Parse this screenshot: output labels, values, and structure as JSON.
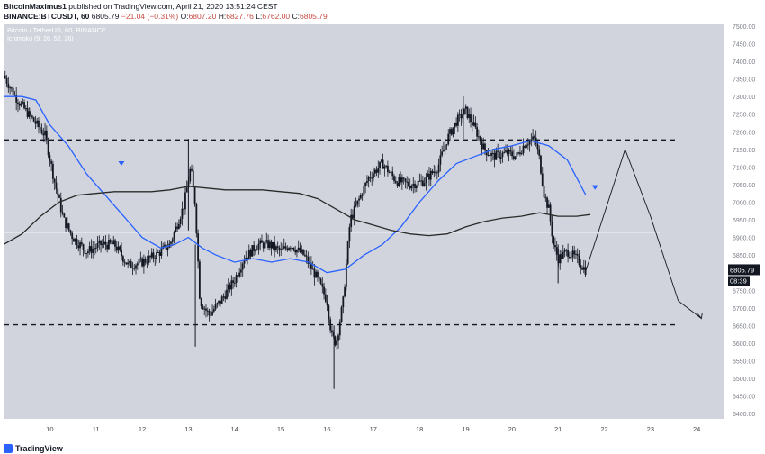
{
  "header": {
    "author": "BitcoinMaximus1",
    "published_text": " published on TradingView.com, April 21, 2020 13:51:24 CEST",
    "symbol": "BINANCE:BTCUSDT, 60",
    "last": "6805.79",
    "change": "−21.04 (−0.31%)",
    "o_label": "O:",
    "o_value": "6807.20",
    "h_label": "H:",
    "h_value": "6827.76",
    "l_label": "L:",
    "l_value": "6762.00",
    "c_label": "C:",
    "c_value": "6805.79"
  },
  "legend": {
    "pair_line": "Bitcoin / TetherUS, 60, BINANCE",
    "indicator_line": "Ichimoku (9, 26, 52, 26)"
  },
  "footer": {
    "brand": "TradingView"
  },
  "colors": {
    "plot_bg": "#d1d4dc",
    "candle": "#131722",
    "blue_line": "#2962ff",
    "dark_line": "#2b2b2b",
    "price_tag_bg": "#131722",
    "price_tag_text": "#ffffff"
  },
  "chart_data": {
    "type": "candlestick",
    "x_ticks": [
      "10",
      "11",
      "12",
      "13",
      "14",
      "15",
      "16",
      "17",
      "18",
      "19",
      "20",
      "21",
      "22",
      "23",
      "24"
    ],
    "y_ticks": [
      "6400.00",
      "6450.00",
      "6500.00",
      "6550.00",
      "6600.00",
      "6650.00",
      "6700.00",
      "6750.00",
      "6800.00",
      "6850.00",
      "6900.00",
      "6950.00",
      "7000.00",
      "7050.00",
      "7100.00",
      "7150.00",
      "7200.00",
      "7250.00",
      "7300.00",
      "7350.00",
      "7400.00",
      "7450.00",
      "7500.00"
    ],
    "ylim": [
      6385,
      7505
    ],
    "xlim": [
      9.0,
      24.6
    ],
    "last_price": "6805.79",
    "countdown": "08:39",
    "horizontal_lines": [
      {
        "price": 7177,
        "style": "dashed"
      },
      {
        "price": 6652,
        "style": "dashed"
      },
      {
        "price": 6915,
        "style": "solid-white"
      }
    ],
    "close_path": [
      [
        9.0,
        7360
      ],
      [
        9.3,
        7290
      ],
      [
        9.6,
        7240
      ],
      [
        9.9,
        7190
      ],
      [
        10.1,
        7060
      ],
      [
        10.3,
        6950
      ],
      [
        10.5,
        6900
      ],
      [
        10.8,
        6860
      ],
      [
        11.1,
        6880
      ],
      [
        11.4,
        6880
      ],
      [
        11.7,
        6820
      ],
      [
        12.0,
        6830
      ],
      [
        12.3,
        6850
      ],
      [
        12.6,
        6880
      ],
      [
        12.9,
        6990
      ],
      [
        13.05,
        7100
      ],
      [
        13.15,
        6990
      ],
      [
        13.25,
        6720
      ],
      [
        13.45,
        6680
      ],
      [
        13.7,
        6720
      ],
      [
        14.0,
        6780
      ],
      [
        14.2,
        6840
      ],
      [
        14.5,
        6880
      ],
      [
        14.75,
        6880
      ],
      [
        15.0,
        6860
      ],
      [
        15.2,
        6880
      ],
      [
        15.5,
        6850
      ],
      [
        15.8,
        6780
      ],
      [
        16.0,
        6720
      ],
      [
        16.1,
        6620
      ],
      [
        16.2,
        6600
      ],
      [
        16.35,
        6720
      ],
      [
        16.5,
        6950
      ],
      [
        16.7,
        7010
      ],
      [
        16.9,
        7070
      ],
      [
        17.2,
        7110
      ],
      [
        17.5,
        7060
      ],
      [
        17.8,
        7050
      ],
      [
        18.1,
        7060
      ],
      [
        18.4,
        7100
      ],
      [
        18.6,
        7180
      ],
      [
        18.8,
        7230
      ],
      [
        19.0,
        7260
      ],
      [
        19.2,
        7210
      ],
      [
        19.4,
        7150
      ],
      [
        19.6,
        7130
      ],
      [
        19.9,
        7140
      ],
      [
        20.1,
        7130
      ],
      [
        20.3,
        7170
      ],
      [
        20.5,
        7180
      ],
      [
        20.6,
        7120
      ],
      [
        20.7,
        7020
      ],
      [
        20.8,
        6980
      ],
      [
        20.9,
        6880
      ],
      [
        21.0,
        6840
      ],
      [
        21.2,
        6860
      ],
      [
        21.4,
        6840
      ],
      [
        21.6,
        6806
      ]
    ],
    "wicks": [
      {
        "x": 16.15,
        "low": 6470,
        "high": 6650
      },
      {
        "x": 13.15,
        "low": 6590,
        "high": 6880
      },
      {
        "x": 18.95,
        "low": 7180,
        "high": 7300
      },
      {
        "x": 13.0,
        "low": 6920,
        "high": 7180
      },
      {
        "x": 21.0,
        "low": 6770,
        "high": 6880
      }
    ],
    "series": [
      {
        "line_kind": "blue",
        "points": [
          [
            9.0,
            7300
          ],
          [
            9.4,
            7300
          ],
          [
            9.7,
            7290
          ],
          [
            10.0,
            7220
          ],
          [
            10.4,
            7160
          ],
          [
            10.8,
            7080
          ],
          [
            11.2,
            7020
          ],
          [
            11.6,
            6960
          ],
          [
            12.0,
            6900
          ],
          [
            12.4,
            6870
          ],
          [
            12.7,
            6880
          ],
          [
            13.0,
            6900
          ],
          [
            13.3,
            6870
          ],
          [
            13.6,
            6850
          ],
          [
            14.0,
            6830
          ],
          [
            14.4,
            6840
          ],
          [
            14.8,
            6830
          ],
          [
            15.2,
            6840
          ],
          [
            15.6,
            6830
          ],
          [
            16.0,
            6800
          ],
          [
            16.4,
            6810
          ],
          [
            16.8,
            6850
          ],
          [
            17.2,
            6880
          ],
          [
            17.6,
            6930
          ],
          [
            18.0,
            7000
          ],
          [
            18.4,
            7060
          ],
          [
            18.8,
            7110
          ],
          [
            19.2,
            7130
          ],
          [
            19.6,
            7150
          ],
          [
            20.0,
            7160
          ],
          [
            20.4,
            7175
          ],
          [
            20.8,
            7160
          ],
          [
            21.2,
            7120
          ],
          [
            21.6,
            7020
          ]
        ]
      },
      {
        "line_kind": "dark",
        "points": [
          [
            9.0,
            6880
          ],
          [
            9.4,
            6910
          ],
          [
            9.8,
            6960
          ],
          [
            10.2,
            7000
          ],
          [
            10.6,
            7020
          ],
          [
            11.0,
            7025
          ],
          [
            11.4,
            7030
          ],
          [
            11.8,
            7030
          ],
          [
            12.2,
            7030
          ],
          [
            12.6,
            7035
          ],
          [
            13.0,
            7045
          ],
          [
            13.4,
            7040
          ],
          [
            13.8,
            7035
          ],
          [
            14.2,
            7035
          ],
          [
            14.6,
            7035
          ],
          [
            15.0,
            7030
          ],
          [
            15.4,
            7025
          ],
          [
            15.8,
            7010
          ],
          [
            16.2,
            6980
          ],
          [
            16.6,
            6950
          ],
          [
            17.0,
            6935
          ],
          [
            17.4,
            6920
          ],
          [
            17.8,
            6910
          ],
          [
            18.2,
            6905
          ],
          [
            18.6,
            6910
          ],
          [
            19.0,
            6930
          ],
          [
            19.4,
            6945
          ],
          [
            19.8,
            6955
          ],
          [
            20.2,
            6960
          ],
          [
            20.6,
            6970
          ],
          [
            21.0,
            6960
          ],
          [
            21.4,
            6960
          ],
          [
            21.7,
            6965
          ]
        ]
      }
    ],
    "projection": [
      [
        21.6,
        6806
      ],
      [
        22.45,
        7150
      ],
      [
        23.0,
        6960
      ],
      [
        23.6,
        6720
      ],
      [
        24.1,
        6670
      ]
    ],
    "triangles": [
      {
        "x": 11.55,
        "y": 7110,
        "color": "blue"
      },
      {
        "x": 21.8,
        "y": 7042,
        "color": "blue"
      }
    ]
  }
}
